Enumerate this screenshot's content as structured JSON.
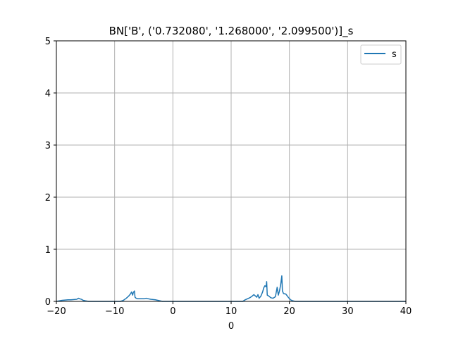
{
  "chart_data": {
    "type": "line",
    "title": "BN['B', ('0.732080', '1.268000', '2.099500')]_s",
    "xlabel": "0",
    "ylabel": "",
    "xlim": [
      -20,
      40
    ],
    "ylim": [
      0,
      5
    ],
    "xticks": [
      -20,
      -10,
      0,
      10,
      20,
      30,
      40
    ],
    "yticks": [
      0,
      1,
      2,
      3,
      4,
      5
    ],
    "grid": true,
    "legend_position": "top-right",
    "series": [
      {
        "name": "s",
        "color": "#1f77b4",
        "points": [
          [
            -20,
            0.0
          ],
          [
            -19.5,
            0.01
          ],
          [
            -19,
            0.02
          ],
          [
            -18.5,
            0.025
          ],
          [
            -18,
            0.03
          ],
          [
            -17.5,
            0.03
          ],
          [
            -17,
            0.035
          ],
          [
            -16.5,
            0.04
          ],
          [
            -16.2,
            0.06
          ],
          [
            -16,
            0.05
          ],
          [
            -15.7,
            0.04
          ],
          [
            -15.4,
            0.02
          ],
          [
            -15,
            0.01
          ],
          [
            -14.5,
            0.0
          ],
          [
            -13,
            0.0
          ],
          [
            -11,
            0.0
          ],
          [
            -9,
            0.0
          ],
          [
            -8.5,
            0.02
          ],
          [
            -8,
            0.06
          ],
          [
            -7.6,
            0.1
          ],
          [
            -7.3,
            0.14
          ],
          [
            -7.1,
            0.18
          ],
          [
            -6.9,
            0.12
          ],
          [
            -6.8,
            0.17
          ],
          [
            -6.6,
            0.2
          ],
          [
            -6.5,
            0.08
          ],
          [
            -6.3,
            0.06
          ],
          [
            -6,
            0.05
          ],
          [
            -5.5,
            0.05
          ],
          [
            -5,
            0.05
          ],
          [
            -4.6,
            0.06
          ],
          [
            -4.2,
            0.05
          ],
          [
            -3.8,
            0.04
          ],
          [
            -3.4,
            0.035
          ],
          [
            -3,
            0.03
          ],
          [
            -2.6,
            0.02
          ],
          [
            -2.2,
            0.01
          ],
          [
            -1.8,
            0.0
          ],
          [
            0,
            0.0
          ],
          [
            5,
            0.0
          ],
          [
            10,
            0.0
          ],
          [
            12,
            0.0
          ],
          [
            12.4,
            0.03
          ],
          [
            12.8,
            0.05
          ],
          [
            13.2,
            0.07
          ],
          [
            13.6,
            0.1
          ],
          [
            13.9,
            0.13
          ],
          [
            14.2,
            0.1
          ],
          [
            14.4,
            0.08
          ],
          [
            14.6,
            0.13
          ],
          [
            14.8,
            0.06
          ],
          [
            15.1,
            0.1
          ],
          [
            15.4,
            0.18
          ],
          [
            15.6,
            0.26
          ],
          [
            15.8,
            0.3
          ],
          [
            16,
            0.28
          ],
          [
            16.1,
            0.38
          ],
          [
            16.2,
            0.12
          ],
          [
            16.5,
            0.1
          ],
          [
            16.8,
            0.07
          ],
          [
            17.2,
            0.06
          ],
          [
            17.6,
            0.09
          ],
          [
            17.9,
            0.27
          ],
          [
            18.1,
            0.12
          ],
          [
            18.3,
            0.2
          ],
          [
            18.5,
            0.32
          ],
          [
            18.7,
            0.49
          ],
          [
            18.8,
            0.2
          ],
          [
            19,
            0.15
          ],
          [
            19.4,
            0.14
          ],
          [
            19.8,
            0.08
          ],
          [
            20.2,
            0.03
          ],
          [
            20.6,
            0.01
          ],
          [
            21,
            0.0
          ],
          [
            25,
            0.0
          ],
          [
            30,
            0.0
          ],
          [
            35,
            0.0
          ],
          [
            40,
            0.0
          ]
        ]
      }
    ]
  }
}
